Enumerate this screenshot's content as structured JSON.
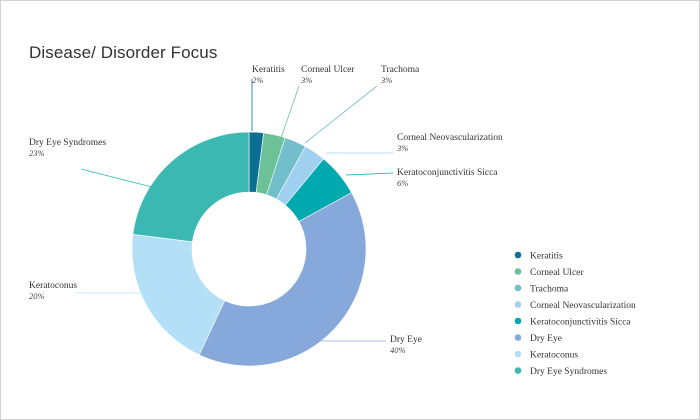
{
  "chart_data": {
    "type": "pie",
    "title": "Disease/ Disorder Focus",
    "unit": "%",
    "slices": [
      {
        "label": "Keratitis",
        "value": 2,
        "value_label": "2%",
        "color": "#0b6f95"
      },
      {
        "label": "Corneal Ulcer",
        "value": 3,
        "value_label": "3%",
        "color": "#6cc296"
      },
      {
        "label": "Trachoma",
        "value": 3,
        "value_label": "3%",
        "color": "#72bfcb"
      },
      {
        "label": "Corneal Neovascularization",
        "value": 3,
        "value_label": "3%",
        "color": "#9fd0f0"
      },
      {
        "label": "Keratoconjunctivitis Sicca",
        "value": 6,
        "value_label": "6%",
        "color": "#00a9ae"
      },
      {
        "label": "Dry Eye",
        "value": 40,
        "value_label": "40%",
        "color": "#86a8da"
      },
      {
        "label": "Keratoconus",
        "value": 20,
        "value_label": "20%",
        "color": "#b3e0f6"
      },
      {
        "label": "Dry Eye Syndromes",
        "value": 23,
        "value_label": "23%",
        "color": "#3bb8b1"
      }
    ],
    "legend_position": "right"
  }
}
